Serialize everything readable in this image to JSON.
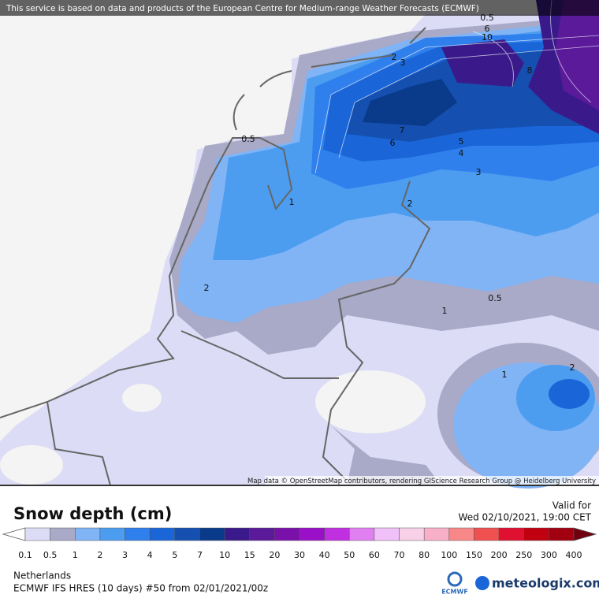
{
  "banner": "This service is based on data and products of the European Centre for Medium-range Weather Forecasts (ECMWF)",
  "attribution": "Map data © OpenStreetMap contributors, rendering GIScience Research Group @ Heidelberg University",
  "contour_labels": [
    0.5,
    6,
    10,
    2,
    3,
    8,
    7,
    6,
    5,
    4,
    3,
    0.5,
    1,
    2,
    2,
    1,
    0.5,
    1,
    2
  ],
  "title": "Snow depth (cm)",
  "valid_label": "Valid for",
  "valid_time": "Wed 02/10/2021, 19:00 CET",
  "legend": {
    "levels": [
      0.1,
      0.5,
      1,
      2,
      3,
      4,
      5,
      7,
      10,
      15,
      20,
      30,
      40,
      50,
      60,
      70,
      80,
      100,
      150,
      200,
      250,
      300,
      400
    ],
    "below_color": "#ffffff",
    "colors": [
      "#dcdcf6",
      "#a9a9c8",
      "#80b4f5",
      "#4c9cf0",
      "#2f80ec",
      "#1a66d8",
      "#1550b0",
      "#0a3a8a",
      "#3a1a8a",
      "#5a1a9a",
      "#7a10aa",
      "#9a10c8",
      "#c030e0",
      "#e080f0",
      "#f0c0f8",
      "#f8d0e8",
      "#f8b0c8",
      "#f88888",
      "#f05050",
      "#e01030",
      "#c00010",
      "#a00010"
    ],
    "above_color": "#700010"
  },
  "region": "Netherlands",
  "model_run": "ECMWF IFS HRES (10 days) #50 from  02/01/2021/00z",
  "ecmwf_logo": "ECMWF",
  "brand": "meteologix.com"
}
